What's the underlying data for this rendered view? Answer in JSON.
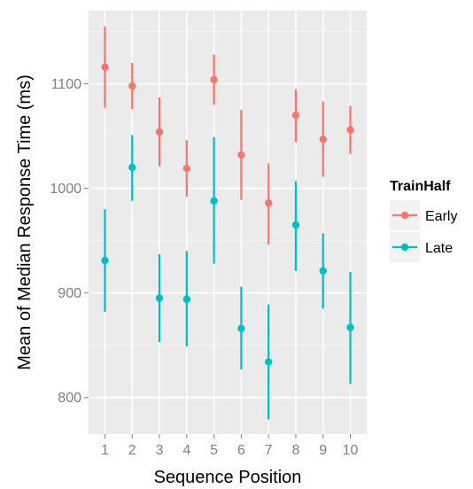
{
  "chart_data": {
    "type": "scatter",
    "xlabel": "Sequence Position",
    "ylabel": "Mean of Median Response Time (ms)",
    "x": [
      1,
      2,
      3,
      4,
      5,
      6,
      7,
      8,
      9,
      10
    ],
    "x_ticks": [
      "1",
      "2",
      "3",
      "4",
      "5",
      "6",
      "7",
      "8",
      "9",
      "10"
    ],
    "y_ticks": [
      800,
      900,
      1000,
      1100
    ],
    "ylim": [
      765,
      1170
    ],
    "grid": true,
    "legend": {
      "title": "TrainHalf",
      "placement": "right"
    },
    "series": [
      {
        "name": "Early",
        "color": "#f8766d",
        "values": [
          1116,
          1098,
          1054,
          1019,
          1104,
          1032,
          986,
          1070,
          1047,
          1056
        ],
        "lower": [
          1077,
          1076,
          1021,
          992,
          1080,
          989,
          946,
          1044,
          1011,
          1033
        ],
        "upper": [
          1155,
          1120,
          1087,
          1046,
          1128,
          1075,
          1024,
          1095,
          1083,
          1079
        ]
      },
      {
        "name": "Late",
        "color": "#00bfc4",
        "values": [
          931,
          1020,
          895,
          894,
          988,
          866,
          834,
          965,
          921,
          867
        ],
        "lower": [
          882,
          988,
          853,
          849,
          928,
          827,
          779,
          921,
          885,
          813
        ],
        "upper": [
          980,
          1051,
          937,
          940,
          1049,
          906,
          889,
          1007,
          957,
          920
        ]
      }
    ]
  }
}
